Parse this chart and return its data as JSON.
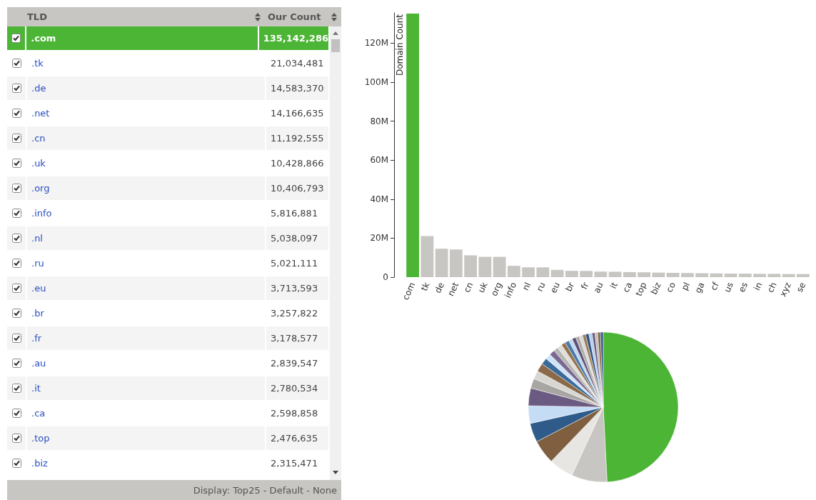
{
  "chart_data": [
    {
      "type": "other",
      "xlabel": "TLD",
      "ylabel": "Our Count",
      "categories": [
        ".com",
        ".tk",
        ".de",
        ".net",
        ".cn",
        ".uk",
        ".org",
        ".info",
        ".nl",
        ".ru",
        ".eu",
        ".br",
        ".fr",
        ".au",
        ".it",
        ".ca",
        ".top",
        ".biz"
      ],
      "value_labels": [
        "135,142,286",
        "21,034,481",
        "14,583,370",
        "14,166,635",
        "11,192,555",
        "10,428,866",
        "10,406,793",
        "5,816,881",
        "5,038,097",
        "5,021,111",
        "3,713,593",
        "3,257,822",
        "3,178,577",
        "2,839,547",
        "2,780,534",
        "2,598,858",
        "2,476,635",
        "2,315,471"
      ],
      "colors": [
        "#4cb535",
        null,
        null,
        null,
        null,
        null,
        null,
        null,
        null,
        null,
        null,
        null,
        null,
        null,
        null,
        null,
        null,
        null
      ],
      "annotations": [
        "Display: Top25 - Default - None"
      ]
    },
    {
      "type": "bar",
      "ylabel": "Domain Count",
      "categories": [
        "com",
        "tk",
        "de",
        "net",
        "cn",
        "uk",
        "org",
        "info",
        "nl",
        "ru",
        "eu",
        "br",
        "fr",
        "au",
        "it",
        "ca",
        "top",
        "biz",
        "co",
        "pl",
        "ga",
        "cf",
        "us",
        "es",
        "in",
        "ch",
        "xyz",
        "se"
      ],
      "values": [
        135142286,
        21034481,
        14583370,
        14166635,
        11192555,
        10428866,
        10406793,
        5816881,
        5038097,
        5021111,
        3713593,
        3257822,
        3178577,
        2839547,
        2780534,
        2598858,
        2476635,
        2315471,
        2200000,
        2100000,
        2000000,
        1900000,
        1800000,
        1800000,
        1700000,
        1700000,
        1600000,
        1600000
      ],
      "colors": [
        "#4cb535",
        "#c8c6c2",
        "#c8c6c2",
        "#c8c6c2",
        "#c8c6c2",
        "#c8c6c2",
        "#c8c6c2",
        "#c8c6c2",
        "#c8c6c2",
        "#c8c6c2",
        "#c8c6c2",
        "#c8c6c2",
        "#c8c6c2",
        "#c8c6c2",
        "#c8c6c2",
        "#c8c6c2",
        "#c8c6c2",
        "#c8c6c2",
        "#c8c6c2",
        "#c8c6c2",
        "#c8c6c2",
        "#c8c6c2",
        "#c8c6c2",
        "#c8c6c2",
        "#c8c6c2",
        "#c8c6c2",
        "#c8c6c2",
        "#c8c6c2"
      ],
      "ylim": [
        0,
        135500000
      ],
      "yticks": [
        {
          "value": 0,
          "label": "0"
        },
        {
          "value": 20000000,
          "label": "20M"
        },
        {
          "value": 40000000,
          "label": "40M"
        },
        {
          "value": 60000000,
          "label": "60M"
        },
        {
          "value": 80000000,
          "label": "80M"
        },
        {
          "value": 100000000,
          "label": "100M"
        },
        {
          "value": 120000000,
          "label": "120M"
        }
      ],
      "grid": false
    },
    {
      "type": "pie",
      "categories": [
        null,
        null,
        null,
        null,
        null,
        null,
        null,
        null,
        null,
        null,
        null,
        null,
        null,
        null,
        null,
        null,
        null,
        null,
        null,
        null,
        null,
        null,
        null,
        null,
        null,
        null,
        null,
        null
      ],
      "values": [
        49.2,
        7.7,
        5.3,
        5.2,
        4.1,
        3.8,
        3.8,
        2.1,
        1.8,
        1.8,
        1.4,
        1.2,
        1.2,
        1.0,
        1.0,
        0.9,
        0.9,
        0.8,
        0.8,
        0.8,
        0.7,
        0.7,
        0.7,
        0.7,
        0.6,
        0.6,
        0.6,
        0.6
      ],
      "colors": [
        "#4cb535",
        "#c8c6c2",
        "#e8e6e2",
        "#7f5f3f",
        "#2f5b8a",
        "#c5dcf5",
        "#6b5b82",
        "#a8a6a2",
        "#d8d6d2",
        "#8a6a48",
        "#3a6a9a",
        "#d0e4f8",
        "#7a6a92",
        "#b8b6b2",
        "#e0deda",
        "#94744f",
        "#4a7aaa",
        "#c0d8f0",
        "#5e4e74",
        "#aeaca8",
        "#dcdad6",
        "#9c7c58",
        "#2a5282",
        "#b8d0ec",
        "#68587e",
        "#c0beba",
        "#866644",
        "#34628f"
      ]
    }
  ]
}
